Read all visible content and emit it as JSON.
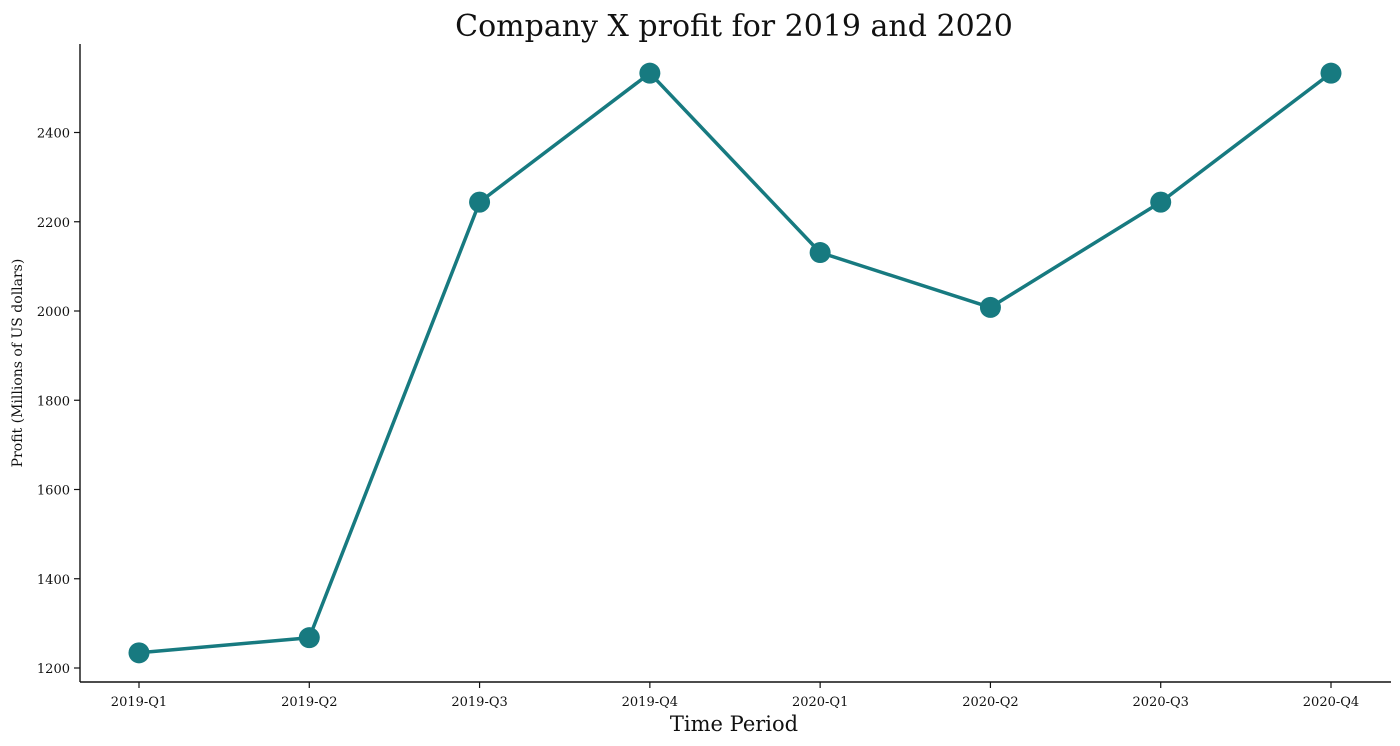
{
  "chart_data": {
    "type": "line",
    "title": "Company X profit for 2019 and 2020",
    "xlabel": "Time Period",
    "ylabel": "Profit (Millions of US dollars)",
    "categories": [
      "2019-Q1",
      "2019-Q2",
      "2019-Q3",
      "2019-Q4",
      "2020-Q1",
      "2020-Q2",
      "2020-Q3",
      "2020-Q4"
    ],
    "series": [
      {
        "values": [
          1234,
          1268,
          2244,
          2533,
          2131,
          2008,
          2244,
          2533
        ]
      }
    ],
    "yticks": [
      "1200",
      "1400",
      "1600",
      "1800",
      "2000",
      "2200",
      "2400"
    ],
    "ylim": [
      1170,
      2600
    ],
    "grid": false,
    "legend": "none",
    "color": "#177a80",
    "marker": "circle"
  }
}
